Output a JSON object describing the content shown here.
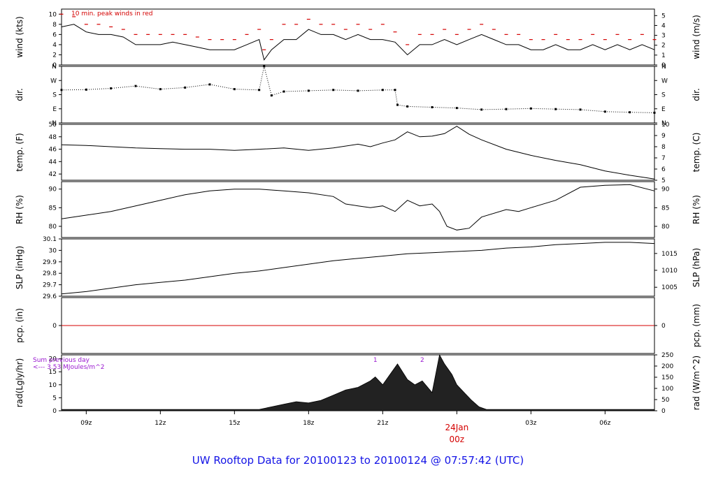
{
  "chart_data": {
    "type": "line",
    "footer": "UW Rooftop Data for 20100123  to  20100124 @ 07:57:42  (UTC)",
    "x_ticks": [
      "09z",
      "12z",
      "15z",
      "18z",
      "21z",
      "24Jan",
      "03z",
      "06z"
    ],
    "date_label": "24Jan",
    "date_sub": "00z",
    "panels": [
      {
        "key": "wind",
        "ylabel": "wind (kts)",
        "ylabel_right": "wind (m/s)",
        "ylim": [
          0,
          11
        ],
        "y_ticks": [
          0,
          2,
          4,
          6,
          8,
          10
        ],
        "right_ticks": [
          "0",
          "1",
          "2",
          "3",
          "4",
          "5"
        ],
        "right_values": [
          0,
          1.944,
          3.888,
          5.832,
          7.776,
          9.72
        ],
        "annotation": "10 min. peak winds in red",
        "x": [
          8,
          8.5,
          9,
          9.5,
          10,
          10.5,
          11,
          11.5,
          12,
          12.5,
          13,
          13.5,
          14,
          14.5,
          15,
          15.5,
          16,
          16.2,
          16.5,
          17,
          17.5,
          18,
          18.5,
          19,
          19.5,
          20,
          20.5,
          21,
          21.5,
          22,
          22.5,
          23,
          23.5,
          24,
          24.5,
          25,
          25.5,
          26,
          26.5,
          27,
          27.5,
          28,
          28.5,
          29,
          29.5,
          30,
          30.5,
          31,
          31.5,
          32
        ],
        "values": [
          7.5,
          8,
          6.5,
          6,
          6,
          5.5,
          4,
          4,
          4,
          4.5,
          4,
          3.5,
          3,
          3,
          3,
          4,
          5,
          1,
          3,
          5,
          5,
          7,
          6,
          6,
          5,
          6,
          5,
          5,
          4.5,
          2,
          4,
          4,
          5,
          4,
          5,
          6,
          5,
          4,
          4,
          3,
          3,
          4,
          3,
          3,
          4,
          3,
          4,
          3,
          4,
          3
        ],
        "peak_values": [
          10,
          9.5,
          8,
          8,
          7.5,
          7,
          6,
          6,
          6,
          6,
          6,
          5.5,
          5,
          5,
          5,
          6,
          7,
          3,
          5,
          8,
          8,
          9,
          8,
          8,
          7,
          8,
          7,
          8,
          6.5,
          4,
          6,
          6,
          7,
          6,
          7,
          8,
          7,
          6,
          6,
          5,
          5,
          6,
          5,
          5,
          6,
          5,
          6,
          5,
          6,
          5
        ]
      },
      {
        "key": "dir",
        "ylabel": "dir.",
        "ylabel_right": "dir.",
        "ylim": [
          0,
          360
        ],
        "y_ticks": [
          0,
          90,
          180,
          270,
          360
        ],
        "tick_labels": [
          "N",
          "E",
          "S",
          "W",
          "N"
        ],
        "right_ticks": [
          "N",
          "E",
          "S",
          "W",
          "N"
        ],
        "right_values": [
          0,
          90,
          180,
          270,
          360
        ],
        "x": [
          8,
          9,
          10,
          11,
          12,
          13,
          14,
          15,
          16,
          16.2,
          16.5,
          17,
          18,
          19,
          20,
          21,
          21.5,
          21.6,
          22,
          23,
          24,
          25,
          26,
          27,
          28,
          29,
          30,
          31,
          32
        ],
        "values": [
          210,
          212,
          220,
          235,
          215,
          225,
          245,
          215,
          210,
          360,
          175,
          200,
          205,
          210,
          205,
          210,
          210,
          115,
          105,
          100,
          95,
          85,
          88,
          92,
          88,
          85,
          72,
          68,
          65
        ]
      },
      {
        "key": "temp",
        "ylabel": "temp. (F)",
        "ylabel_right": "temp. (C)",
        "ylim": [
          41,
          50
        ],
        "y_ticks": [
          42,
          44,
          46,
          48,
          50
        ],
        "right_ticks": [
          "5",
          "6",
          "7",
          "8",
          "9",
          "10"
        ],
        "right_values": [
          41,
          42.8,
          44.6,
          46.4,
          48.2,
          50
        ],
        "x": [
          8,
          9,
          10,
          11,
          12,
          13,
          14,
          15,
          16,
          17,
          18,
          19,
          20,
          20.5,
          21,
          21.5,
          22,
          22.5,
          23,
          23.5,
          24,
          24.5,
          25,
          26,
          27,
          28,
          29,
          30,
          31,
          32
        ],
        "values": [
          46.7,
          46.6,
          46.4,
          46.2,
          46.1,
          46.0,
          46.0,
          45.8,
          46.0,
          46.2,
          45.8,
          46.2,
          46.8,
          46.4,
          47.0,
          47.5,
          48.8,
          48.0,
          48.1,
          48.5,
          49.7,
          48.4,
          47.5,
          46.0,
          45.0,
          44.2,
          43.5,
          42.5,
          41.8,
          41.2
        ]
      },
      {
        "key": "rh",
        "ylabel": "RH (%)",
        "ylabel_right": "RH (%)",
        "ylim": [
          77,
          92
        ],
        "y_ticks": [
          80,
          85,
          90
        ],
        "right_ticks": [
          "80",
          "85",
          "90"
        ],
        "right_values": [
          80,
          85,
          90
        ],
        "x": [
          8,
          9,
          10,
          11,
          12,
          13,
          14,
          15,
          16,
          17,
          18,
          19,
          19.5,
          20,
          20.5,
          21,
          21.5,
          22,
          22.5,
          23,
          23.3,
          23.6,
          24,
          24.5,
          25,
          26,
          26.5,
          27,
          28,
          29,
          30,
          31,
          32
        ],
        "values": [
          82,
          83,
          84,
          85.5,
          87,
          88.5,
          89.5,
          90,
          90,
          89.5,
          89,
          88,
          86,
          85.5,
          85,
          85.5,
          84,
          87,
          85.5,
          86,
          84,
          80,
          79,
          79.5,
          82.5,
          84.5,
          84,
          85,
          87,
          90.5,
          91,
          91.2,
          89.5
        ]
      },
      {
        "key": "slp",
        "ylabel": "SLP (inHg)",
        "ylabel_right": "SLP (hPa)",
        "ylim": [
          29.6,
          30.1
        ],
        "y_ticks": [
          29.6,
          29.7,
          29.8,
          29.9,
          30.0,
          30.1
        ],
        "right_ticks": [
          "1005",
          "1010",
          "1015"
        ],
        "right_values": [
          29.678,
          29.826,
          29.973
        ],
        "x": [
          8,
          9,
          10,
          11,
          12,
          13,
          14,
          15,
          16,
          17,
          18,
          19,
          20,
          21,
          22,
          23,
          24,
          25,
          26,
          27,
          28,
          29,
          30,
          31,
          32
        ],
        "values": [
          29.62,
          29.64,
          29.67,
          29.7,
          29.72,
          29.74,
          29.77,
          29.8,
          29.82,
          29.85,
          29.88,
          29.91,
          29.93,
          29.95,
          29.97,
          29.98,
          29.99,
          30.0,
          30.02,
          30.03,
          30.05,
          30.06,
          30.07,
          30.07,
          30.06
        ]
      },
      {
        "key": "pcp",
        "ylabel": "pcp. (in)",
        "ylabel_right": "pcp. (mm)",
        "ylim": [
          -1,
          1
        ],
        "y_ticks": [
          0
        ],
        "right_ticks": [
          "0"
        ],
        "right_values": [
          0
        ],
        "x": [
          8,
          32
        ],
        "values": [
          0,
          0
        ]
      },
      {
        "key": "rad",
        "ylabel": "rad(Lgly/hr)",
        "ylabel_right": "rad (W/m^2)",
        "ylim": [
          0,
          21.5
        ],
        "y_ticks": [
          0,
          5,
          10,
          15,
          20
        ],
        "right_ticks": [
          "0",
          "50",
          "100",
          "150",
          "200",
          "250"
        ],
        "right_values": [
          0,
          4.3,
          8.6,
          12.9,
          17.2,
          21.5
        ],
        "note_lines": [
          "Sum previous day",
          "<--- 3.53 MJoules/m^2"
        ],
        "peak_markers": [
          "1",
          "2"
        ],
        "peak_marker_x": [
          20.7,
          22.6
        ],
        "x": [
          8,
          16.0,
          16.5,
          17.0,
          17.5,
          18.0,
          18.5,
          19.0,
          19.5,
          20.0,
          20.5,
          20.7,
          21.0,
          21.3,
          21.6,
          22.0,
          22.3,
          22.6,
          23.0,
          23.3,
          23.5,
          23.8,
          24.0,
          24.3,
          24.6,
          24.9,
          25.2,
          32
        ],
        "values": [
          0.5,
          0.5,
          1.5,
          2.5,
          3.5,
          3,
          4,
          6,
          8,
          9,
          11.5,
          13,
          10,
          14,
          18,
          12,
          10,
          11.5,
          7,
          21.5,
          18,
          14,
          10,
          7,
          4,
          1.5,
          0.5,
          0.5
        ]
      }
    ]
  }
}
